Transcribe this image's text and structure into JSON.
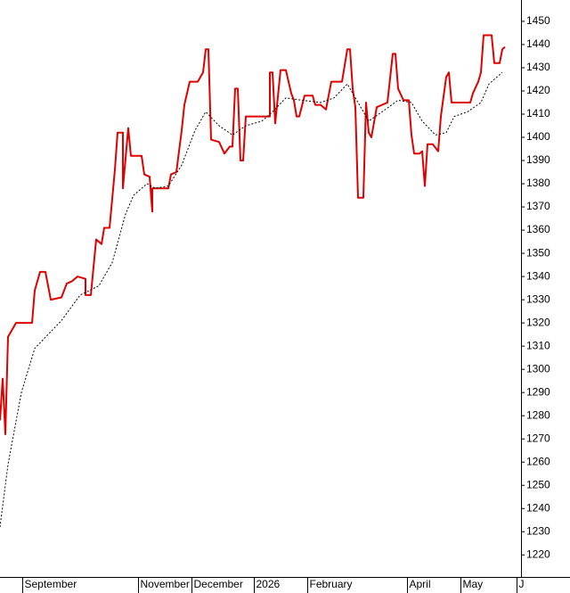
{
  "chart_data": {
    "type": "line",
    "xlim": [
      0,
      195
    ],
    "ylim": [
      1210.5,
      1459.2
    ],
    "xticks": [
      {
        "value": 8.3,
        "label": "September"
      },
      {
        "value": 51.7,
        "label": "November"
      },
      {
        "value": 71.7,
        "label": "December"
      },
      {
        "value": 95,
        "label": "2026"
      },
      {
        "value": 115,
        "label": "February"
      },
      {
        "value": 152.3,
        "label": "April"
      },
      {
        "value": 172.3,
        "label": "May"
      },
      {
        "value": 193.3,
        "label": "J"
      }
    ],
    "yticks": [
      1220,
      1230,
      1240,
      1250,
      1260,
      1270,
      1280,
      1290,
      1300,
      1310,
      1320,
      1330,
      1340,
      1350,
      1360,
      1370,
      1380,
      1390,
      1400,
      1410,
      1420,
      1430,
      1440,
      1450
    ],
    "series": [
      {
        "color": "#e00000",
        "style": "solid",
        "x": [
          0,
          1,
          2,
          3,
          6,
          12,
          13,
          15,
          17,
          19,
          23,
          24,
          25,
          27,
          29,
          32,
          32,
          34,
          36,
          38,
          39,
          41,
          43,
          44,
          46,
          46,
          48,
          49,
          53,
          54,
          56,
          57,
          57,
          59,
          63,
          64,
          66,
          68,
          69,
          71,
          74,
          76,
          77,
          78,
          79,
          82,
          84,
          86,
          87,
          88,
          89,
          90,
          91,
          92,
          99,
          101,
          101,
          102,
          103,
          105,
          107,
          109,
          110,
          111,
          112,
          114,
          117,
          118,
          120,
          122,
          124,
          128,
          130,
          131,
          132,
          133,
          134,
          136,
          137,
          138,
          139,
          141,
          145,
          147,
          148,
          149,
          151,
          153,
          154,
          155,
          157,
          158,
          159,
          160,
          162,
          164,
          165,
          167,
          168,
          169,
          171,
          176,
          177,
          179,
          180,
          181,
          184,
          185,
          187,
          188,
          189
        ],
        "values": [
          1278,
          1296,
          1272,
          1314,
          1320,
          1320,
          1334,
          1342,
          1342,
          1330,
          1331,
          1334,
          1337,
          1338,
          1340,
          1339,
          1332,
          1332,
          1356,
          1354,
          1361,
          1361,
          1386,
          1402,
          1402,
          1378,
          1404,
          1392,
          1392,
          1384,
          1383,
          1368,
          1378,
          1378,
          1378,
          1384,
          1385,
          1403,
          1414,
          1424,
          1424,
          1428,
          1438,
          1438,
          1399,
          1398,
          1393,
          1396,
          1396,
          1421,
          1421,
          1390,
          1390,
          1409,
          1409,
          1409,
          1428,
          1428,
          1406,
          1429,
          1429,
          1419,
          1416,
          1409,
          1409,
          1418,
          1418,
          1414,
          1414,
          1412,
          1424,
          1424,
          1438,
          1438,
          1421,
          1413,
          1374,
          1374,
          1415,
          1402,
          1400,
          1413,
          1415,
          1436,
          1436,
          1421,
          1416,
          1416,
          1401,
          1393,
          1393,
          1394,
          1379,
          1397,
          1397,
          1394,
          1409,
          1426,
          1428,
          1415,
          1415,
          1415,
          1419,
          1424,
          1428,
          1444,
          1444,
          1432,
          1432,
          1438,
          1439
        ]
      },
      {
        "color": "#000000",
        "style": "dotted",
        "x": [
          0,
          3,
          8,
          13,
          18,
          23,
          30,
          37,
          42,
          47,
          50,
          55,
          58,
          63,
          68,
          73,
          77,
          82,
          87,
          92,
          98,
          102,
          107,
          113,
          120,
          125,
          130,
          133,
          138,
          143,
          149,
          154,
          158,
          163,
          167,
          170,
          175,
          180,
          183,
          188
        ],
        "values": [
          1232,
          1259,
          1290,
          1309,
          1315,
          1321,
          1332,
          1336,
          1346,
          1367,
          1375,
          1380,
          1378,
          1379,
          1388,
          1403,
          1411,
          1405,
          1401,
          1405,
          1407,
          1411,
          1417,
          1416,
          1415,
          1417,
          1423,
          1417,
          1407,
          1411,
          1416,
          1415,
          1407,
          1401,
          1402,
          1409,
          1411,
          1415,
          1423,
          1428
        ]
      }
    ]
  }
}
